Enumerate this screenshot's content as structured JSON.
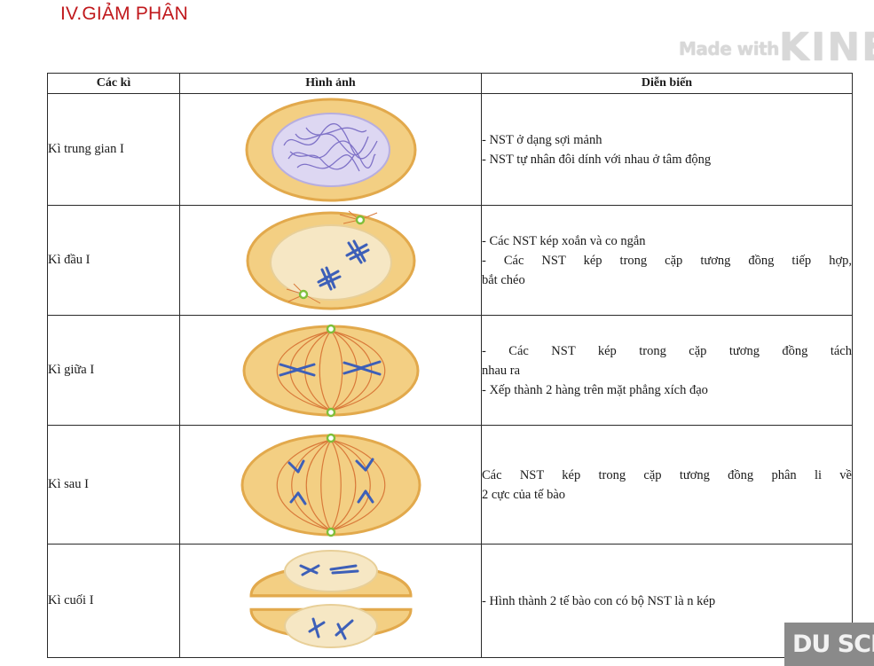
{
  "page": {
    "title": "IV.GIẢM PHÂN",
    "watermark_small": "Made with",
    "watermark_big": "KINE",
    "du_badge": "DU SCRE"
  },
  "table": {
    "headers": [
      "Các kì",
      "Hình ảnh",
      "Diễn biến"
    ],
    "rows": [
      {
        "stage": "Kì trung gian I",
        "image_icon": "interphase-cell-icon",
        "lines": [
          "- NST ở dạng sợi mảnh",
          "- NST tự nhân đôi dính với nhau ở tâm động"
        ]
      },
      {
        "stage": "Kì đầu I",
        "image_icon": "prophase-cell-icon",
        "lines": [
          "- Các NST kép xoắn và co ngắn",
          "- Các NST kép trong cặp tương đồng tiếp hợp,",
          "bắt chéo"
        ]
      },
      {
        "stage": "Kì giữa I",
        "image_icon": "metaphase-cell-icon",
        "lines": [
          "- Các NST kép trong cặp tương đồng tách",
          "nhau ra",
          "- Xếp thành 2 hàng trên mặt phẳng xích đạo"
        ]
      },
      {
        "stage": "Kì sau I",
        "image_icon": "anaphase-cell-icon",
        "lines": [
          "Các NST kép trong cặp tương đồng phân li về",
          "2 cực của tế bào"
        ]
      },
      {
        "stage": "Kì cuối I",
        "image_icon": "telophase-cells-icon",
        "lines": [
          "- Hình thành 2 tế bào con có bộ NST là n kép"
        ]
      }
    ]
  },
  "colors": {
    "cytoplasm": "#f3cf83",
    "cell_rim": "#e2a94c",
    "nucleus": "#f6e7c4",
    "chromatin": "#7f72c7",
    "spindle": "#d97a3a",
    "centrosome": "#7fbf3a",
    "chromosome": "#3d5fb8"
  }
}
